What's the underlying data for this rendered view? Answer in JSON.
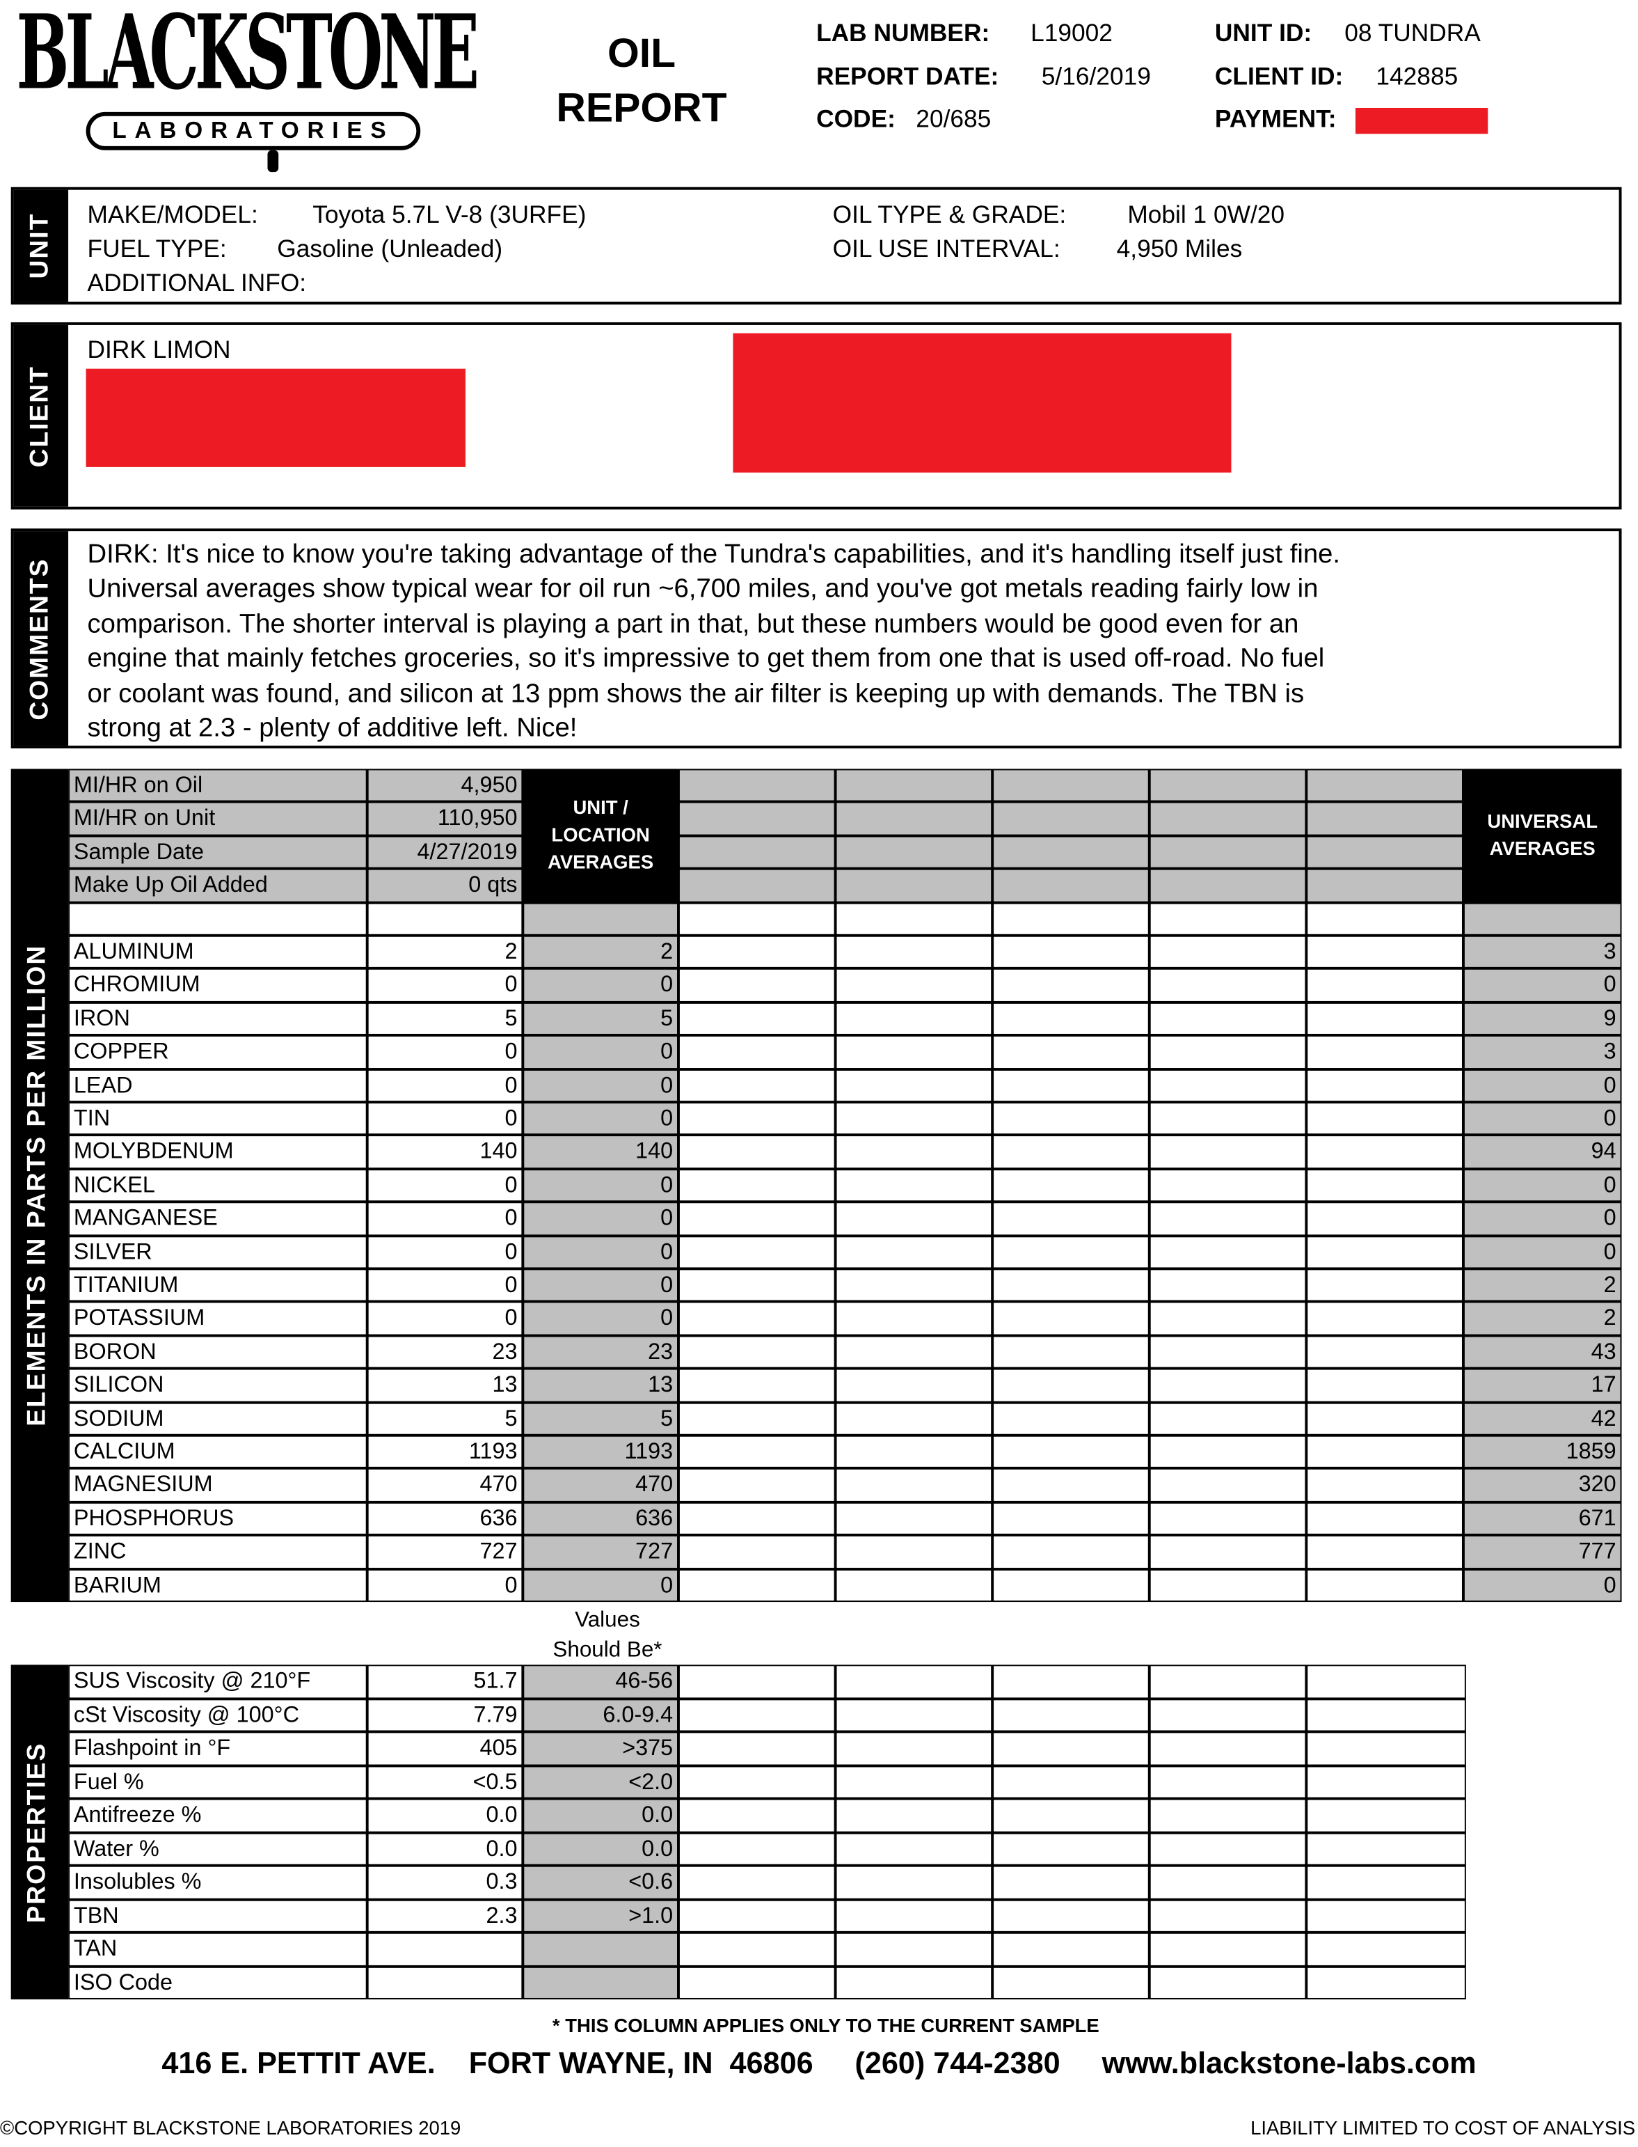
{
  "logo": {
    "name": "BLACKSTONE",
    "sub": "LABORATORIES"
  },
  "title": {
    "line1": "OIL",
    "line2": "REPORT"
  },
  "header": {
    "lab_number_label": "LAB NUMBER:",
    "lab_number": "L19002",
    "report_date_label": "REPORT DATE:",
    "report_date": "5/16/2019",
    "code_label": "CODE:",
    "code": "20/685",
    "unit_id_label": "UNIT ID:",
    "unit_id": "08 TUNDRA",
    "client_id_label": "CLIENT ID:",
    "client_id": "142885",
    "payment_label": "PAYMENT:"
  },
  "redaction_color": "#ed1c24",
  "unit": {
    "section_label": "UNIT",
    "make_model_label": "MAKE/MODEL:",
    "make_model": "Toyota 5.7L V-8 (3URFE)",
    "fuel_type_label": "FUEL TYPE:",
    "fuel_type": "Gasoline (Unleaded)",
    "additional_info_label": "ADDITIONAL INFO:",
    "oil_type_label": "OIL TYPE & GRADE:",
    "oil_type": "Mobil 1 0W/20",
    "oil_use_label": "OIL USE INTERVAL:",
    "oil_use": "4,950 Miles"
  },
  "client": {
    "section_label": "CLIENT",
    "name": "DIRK  LIMON"
  },
  "comments": {
    "section_label": "COMMENTS",
    "lines": [
      "DIRK:  It's nice to know you're taking advantage of the Tundra's capabilities, and it's handling itself just fine.",
      "Universal averages show typical wear for oil run ~6,700 miles, and you've got metals reading fairly low in",
      "comparison. The shorter interval is playing a part in that, but these numbers would be good even for an",
      "engine that mainly fetches groceries, so it's impressive to get them from one that is used off-road. No fuel",
      "or coolant was found, and silicon at 13 ppm shows the air filter is keeping up with demands. The TBN is",
      "strong at 2.3 - plenty of additive left. Nice!"
    ]
  },
  "elements": {
    "section_label": "ELEMENTS  IN  PARTS  PER  MILLION",
    "unit_avg_header": "UNIT / LOCATION AVERAGES",
    "universal_header": "UNIVERSAL AVERAGES",
    "info_rows": [
      {
        "label": "MI/HR on Oil",
        "value": "4,950"
      },
      {
        "label": "MI/HR on Unit",
        "value": "110,950"
      },
      {
        "label": "Sample Date",
        "value": "4/27/2019"
      },
      {
        "label": "Make Up Oil Added",
        "value": "0 qts"
      }
    ],
    "rows": [
      {
        "name": "ALUMINUM",
        "value": "2",
        "unit_avg": "2",
        "universal": "3"
      },
      {
        "name": "CHROMIUM",
        "value": "0",
        "unit_avg": "0",
        "universal": "0"
      },
      {
        "name": "IRON",
        "value": "5",
        "unit_avg": "5",
        "universal": "9"
      },
      {
        "name": "COPPER",
        "value": "0",
        "unit_avg": "0",
        "universal": "3"
      },
      {
        "name": "LEAD",
        "value": "0",
        "unit_avg": "0",
        "universal": "0"
      },
      {
        "name": "TIN",
        "value": "0",
        "unit_avg": "0",
        "universal": "0"
      },
      {
        "name": "MOLYBDENUM",
        "value": "140",
        "unit_avg": "140",
        "universal": "94"
      },
      {
        "name": "NICKEL",
        "value": "0",
        "unit_avg": "0",
        "universal": "0"
      },
      {
        "name": "MANGANESE",
        "value": "0",
        "unit_avg": "0",
        "universal": "0"
      },
      {
        "name": "SILVER",
        "value": "0",
        "unit_avg": "0",
        "universal": "0"
      },
      {
        "name": "TITANIUM",
        "value": "0",
        "unit_avg": "0",
        "universal": "2"
      },
      {
        "name": "POTASSIUM",
        "value": "0",
        "unit_avg": "0",
        "universal": "2"
      },
      {
        "name": "BORON",
        "value": "23",
        "unit_avg": "23",
        "universal": "43"
      },
      {
        "name": "SILICON",
        "value": "13",
        "unit_avg": "13",
        "universal": "17"
      },
      {
        "name": "SODIUM",
        "value": "5",
        "unit_avg": "5",
        "universal": "42"
      },
      {
        "name": "CALCIUM",
        "value": "1193",
        "unit_avg": "1193",
        "universal": "1859"
      },
      {
        "name": "MAGNESIUM",
        "value": "470",
        "unit_avg": "470",
        "universal": "320"
      },
      {
        "name": "PHOSPHORUS",
        "value": "636",
        "unit_avg": "636",
        "universal": "671"
      },
      {
        "name": "ZINC",
        "value": "727",
        "unit_avg": "727",
        "universal": "777"
      },
      {
        "name": "BARIUM",
        "value": "0",
        "unit_avg": "0",
        "universal": "0"
      }
    ]
  },
  "properties": {
    "section_label": "PROPERTIES",
    "should_be_line1": "Values",
    "should_be_line2": "Should Be*",
    "rows": [
      {
        "name": "SUS Viscosity @ 210°F",
        "value": "51.7",
        "should_be": "46-56"
      },
      {
        "name": "cSt Viscosity @ 100°C",
        "value": "7.79",
        "should_be": "6.0-9.4"
      },
      {
        "name": "Flashpoint in °F",
        "value": "405",
        "should_be": ">375"
      },
      {
        "name": "Fuel %",
        "value": "<0.5",
        "should_be": "<2.0"
      },
      {
        "name": "Antifreeze %",
        "value": "0.0",
        "should_be": "0.0"
      },
      {
        "name": "Water %",
        "value": "0.0",
        "should_be": "0.0"
      },
      {
        "name": "Insolubles %",
        "value": "0.3",
        "should_be": "<0.6"
      },
      {
        "name": "TBN",
        "value": "2.3",
        "should_be": ">1.0"
      },
      {
        "name": "TAN",
        "value": "",
        "should_be": ""
      },
      {
        "name": "ISO Code",
        "value": "",
        "should_be": ""
      }
    ]
  },
  "footer": {
    "footnote": "* THIS COLUMN APPLIES ONLY TO THE CURRENT SAMPLE",
    "address": "416 E. PETTIT AVE.",
    "city": "FORT WAYNE, IN  46806",
    "phone": "(260) 744-2380",
    "website": "www.blackstone-labs.com",
    "copyright": "©COPYRIGHT BLACKSTONE LABORATORIES  2019",
    "liability": "LIABILITY LIMITED TO COST OF ANALYSIS"
  }
}
